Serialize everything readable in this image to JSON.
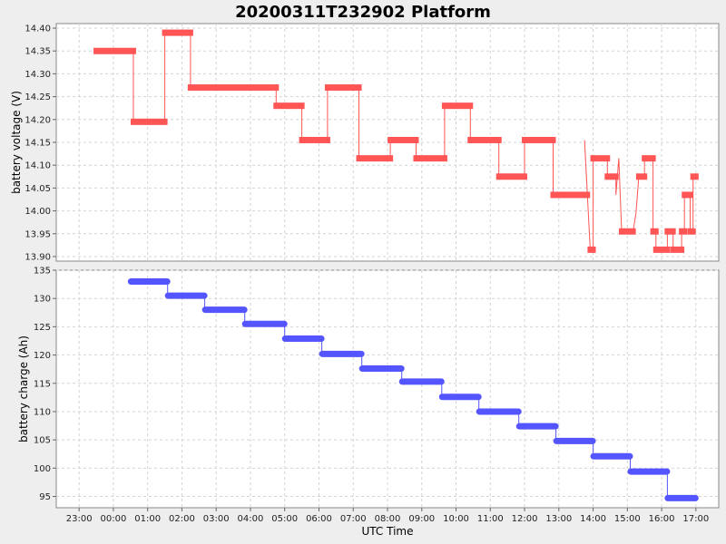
{
  "chart_data": {
    "title": "20200311T232902 Platform",
    "xlabel": "UTC Time",
    "x_ticks": [
      "23:00",
      "00:00",
      "01:00",
      "02:00",
      "03:00",
      "04:00",
      "05:00",
      "06:00",
      "07:00",
      "08:00",
      "09:00",
      "10:00",
      "11:00",
      "12:00",
      "13:00",
      "14:00",
      "15:00",
      "16:00",
      "17:00"
    ],
    "panels": [
      {
        "type": "line",
        "ylabel": "battery voltage (V)",
        "ylim": [
          13.89,
          14.41
        ],
        "y_ticks": [
          "13.90",
          "13.95",
          "14.00",
          "14.05",
          "14.10",
          "14.15",
          "14.20",
          "14.25",
          "14.30",
          "14.35",
          "14.40"
        ],
        "color": "#ff5555",
        "grid": true,
        "series": [
          {
            "t": "23:30",
            "y": 14.35
          },
          {
            "t": "00:35",
            "y": 14.35
          },
          {
            "t": "00:35",
            "y": 14.195
          },
          {
            "t": "01:30",
            "y": 14.195
          },
          {
            "t": "01:30",
            "y": 14.39
          },
          {
            "t": "02:15",
            "y": 14.39
          },
          {
            "t": "02:15",
            "y": 14.27
          },
          {
            "t": "04:45",
            "y": 14.27
          },
          {
            "t": "04:45",
            "y": 14.23
          },
          {
            "t": "05:30",
            "y": 14.23
          },
          {
            "t": "05:30",
            "y": 14.155
          },
          {
            "t": "06:15",
            "y": 14.155
          },
          {
            "t": "06:15",
            "y": 14.27
          },
          {
            "t": "07:10",
            "y": 14.27
          },
          {
            "t": "07:10",
            "y": 14.115
          },
          {
            "t": "08:05",
            "y": 14.115
          },
          {
            "t": "08:05",
            "y": 14.155
          },
          {
            "t": "08:50",
            "y": 14.155
          },
          {
            "t": "08:50",
            "y": 14.115
          },
          {
            "t": "09:40",
            "y": 14.115
          },
          {
            "t": "09:40",
            "y": 14.23
          },
          {
            "t": "10:25",
            "y": 14.23
          },
          {
            "t": "10:25",
            "y": 14.155
          },
          {
            "t": "11:15",
            "y": 14.155
          },
          {
            "t": "11:15",
            "y": 14.075
          },
          {
            "t": "12:00",
            "y": 14.075
          },
          {
            "t": "12:00",
            "y": 14.155
          },
          {
            "t": "12:50",
            "y": 14.155
          },
          {
            "t": "12:50",
            "y": 14.035
          },
          {
            "t": "13:50",
            "y": 14.035
          },
          {
            "t": "13:45",
            "y": 14.155
          },
          {
            "t": "13:55",
            "y": 13.915
          },
          {
            "t": "14:00",
            "y": 13.915
          },
          {
            "t": "14:00",
            "y": 14.115
          },
          {
            "t": "14:25",
            "y": 14.115
          },
          {
            "t": "14:25",
            "y": 14.075
          },
          {
            "t": "14:40",
            "y": 14.075
          },
          {
            "t": "14:40",
            "y": 14.035
          },
          {
            "t": "14:45",
            "y": 14.115
          },
          {
            "t": "14:50",
            "y": 13.955
          },
          {
            "t": "15:10",
            "y": 13.955
          },
          {
            "t": "15:15",
            "y": 13.995
          },
          {
            "t": "15:20",
            "y": 14.075
          },
          {
            "t": "15:30",
            "y": 14.075
          },
          {
            "t": "15:30",
            "y": 14.115
          },
          {
            "t": "15:45",
            "y": 14.115
          },
          {
            "t": "15:45",
            "y": 13.955
          },
          {
            "t": "15:50",
            "y": 13.955
          },
          {
            "t": "15:50",
            "y": 13.915
          },
          {
            "t": "16:10",
            "y": 13.915
          },
          {
            "t": "16:10",
            "y": 13.955
          },
          {
            "t": "16:20",
            "y": 13.955
          },
          {
            "t": "16:20",
            "y": 13.915
          },
          {
            "t": "16:35",
            "y": 13.915
          },
          {
            "t": "16:35",
            "y": 13.955
          },
          {
            "t": "16:40",
            "y": 13.955
          },
          {
            "t": "16:40",
            "y": 14.035
          },
          {
            "t": "16:50",
            "y": 14.035
          },
          {
            "t": "16:50",
            "y": 13.955
          },
          {
            "t": "16:55",
            "y": 13.955
          },
          {
            "t": "16:55",
            "y": 14.075
          },
          {
            "t": "17:00",
            "y": 14.075
          }
        ]
      },
      {
        "type": "line",
        "ylabel": "battery charge (Ah)",
        "ylim": [
          93,
          135
        ],
        "y_ticks": [
          "95",
          "100",
          "105",
          "110",
          "115",
          "120",
          "125",
          "130",
          "135"
        ],
        "color": "#5555ff",
        "grid": true,
        "series": [
          {
            "t": "00:30",
            "y": 133.0
          },
          {
            "t": "01:35",
            "y": 133.0
          },
          {
            "t": "01:35",
            "y": 130.5
          },
          {
            "t": "02:40",
            "y": 130.5
          },
          {
            "t": "02:40",
            "y": 128.0
          },
          {
            "t": "03:50",
            "y": 128.0
          },
          {
            "t": "03:50",
            "y": 125.5
          },
          {
            "t": "05:00",
            "y": 125.5
          },
          {
            "t": "05:00",
            "y": 122.9
          },
          {
            "t": "06:05",
            "y": 122.9
          },
          {
            "t": "06:05",
            "y": 120.2
          },
          {
            "t": "07:15",
            "y": 120.2
          },
          {
            "t": "07:15",
            "y": 117.6
          },
          {
            "t": "08:25",
            "y": 117.6
          },
          {
            "t": "08:25",
            "y": 115.3
          },
          {
            "t": "09:35",
            "y": 115.3
          },
          {
            "t": "09:35",
            "y": 112.6
          },
          {
            "t": "10:40",
            "y": 112.6
          },
          {
            "t": "10:40",
            "y": 110.0
          },
          {
            "t": "11:50",
            "y": 110.0
          },
          {
            "t": "11:50",
            "y": 107.4
          },
          {
            "t": "12:55",
            "y": 107.4
          },
          {
            "t": "12:55",
            "y": 104.8
          },
          {
            "t": "14:00",
            "y": 104.8
          },
          {
            "t": "14:00",
            "y": 102.1
          },
          {
            "t": "15:05",
            "y": 102.1
          },
          {
            "t": "15:05",
            "y": 99.4
          },
          {
            "t": "16:10",
            "y": 99.4
          },
          {
            "t": "16:10",
            "y": 94.7
          },
          {
            "t": "17:00",
            "y": 94.7
          }
        ]
      }
    ]
  }
}
